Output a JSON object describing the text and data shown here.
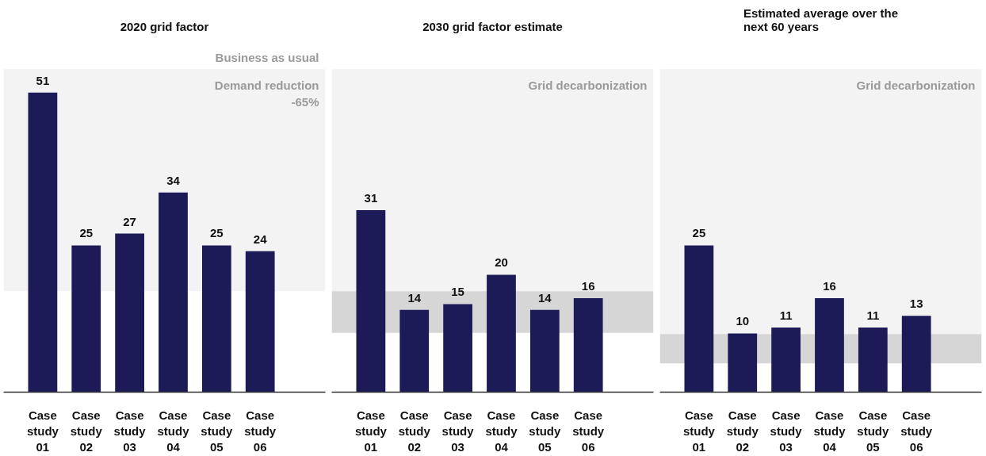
{
  "chart_data": [
    {
      "type": "bar",
      "title": "2020 grid factor",
      "categories": [
        "Case study 01",
        "Case study 02",
        "Case study 03",
        "Case study 04",
        "Case study 05",
        "Case study 06"
      ],
      "values": [
        51,
        25,
        27,
        34,
        25,
        24
      ],
      "color": "#1c1a57",
      "data_labels": true,
      "tick_labels": "x",
      "bands": [
        {
          "axis": "y",
          "from": 17.2,
          "to": 55,
          "label": "Demand reduction -65%",
          "color": "#f3f3f3"
        }
      ],
      "annotations": [
        "Business as usual"
      ]
    },
    {
      "type": "bar",
      "title": "2030 grid factor estimate",
      "categories": [
        "Case study 01",
        "Case study 02",
        "Case study 03",
        "Case study 04",
        "Case study 05",
        "Case study 06"
      ],
      "values": [
        31,
        14,
        15,
        20,
        14,
        16
      ],
      "color": "#1c1a57",
      "data_labels": true,
      "tick_labels": "x",
      "bands": [
        {
          "axis": "y",
          "from": 17.2,
          "to": 55,
          "label": "Grid decarbonization",
          "color": "#f3f3f3"
        },
        {
          "axis": "y",
          "from": 10.1,
          "to": 17.2,
          "color": "#d6d6d6"
        }
      ]
    },
    {
      "type": "bar",
      "title": "Estimated average over the next 60 years",
      "categories": [
        "Case study 01",
        "Case study 02",
        "Case study 03",
        "Case study 04",
        "Case study 05",
        "Case study 06"
      ],
      "values": [
        25,
        10,
        11,
        16,
        11,
        13
      ],
      "color": "#1c1a57",
      "data_labels": true,
      "tick_labels": "x",
      "bands": [
        {
          "axis": "y",
          "from": 9.9,
          "to": 55,
          "label": "Grid decarbonization",
          "color": "#f3f3f3"
        },
        {
          "axis": "y",
          "from": 4.9,
          "to": 9.9,
          "color": "#d6d6d6"
        }
      ]
    }
  ]
}
